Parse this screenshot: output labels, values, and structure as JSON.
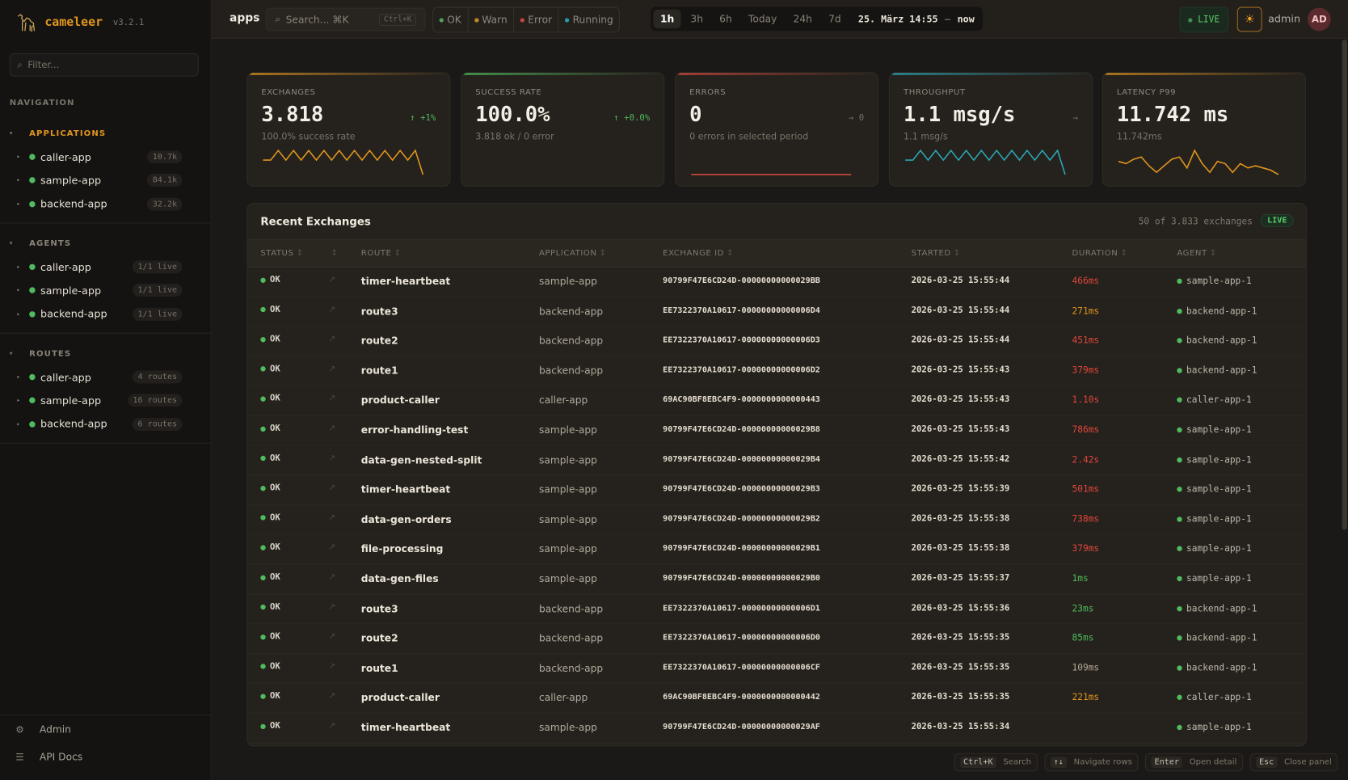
{
  "app": {
    "name": "cameleer",
    "version": "v3.2.1"
  },
  "sidebar": {
    "filter_placeholder": "Filter...",
    "nav_label": "NAVIGATION",
    "sections": [
      {
        "title": "APPLICATIONS",
        "active": true,
        "items": [
          {
            "label": "caller-app",
            "badge": "10.7k"
          },
          {
            "label": "sample-app",
            "badge": "84.1k"
          },
          {
            "label": "backend-app",
            "badge": "32.2k"
          }
        ]
      },
      {
        "title": "AGENTS",
        "active": false,
        "items": [
          {
            "label": "caller-app",
            "badge": "1/1 live"
          },
          {
            "label": "sample-app",
            "badge": "1/1 live"
          },
          {
            "label": "backend-app",
            "badge": "1/1 live"
          }
        ]
      },
      {
        "title": "ROUTES",
        "active": false,
        "items": [
          {
            "label": "caller-app",
            "badge": "4 routes"
          },
          {
            "label": "sample-app",
            "badge": "16 routes"
          },
          {
            "label": "backend-app",
            "badge": "6 routes"
          }
        ]
      }
    ],
    "footer": [
      {
        "label": "Admin",
        "icon": "gear-icon"
      },
      {
        "label": "API Docs",
        "icon": "docs-icon"
      }
    ]
  },
  "topbar": {
    "breadcrumb": "apps",
    "search_placeholder": "Search... ⌘K",
    "search_shortcut": "Ctrl+K",
    "status_filters": [
      {
        "label": "OK",
        "color": "#4fa05a"
      },
      {
        "label": "Warn",
        "color": "#c08a2a"
      },
      {
        "label": "Error",
        "color": "#c2473f"
      },
      {
        "label": "Running",
        "color": "#2a9aa8"
      }
    ],
    "time_ranges": [
      "1h",
      "3h",
      "6h",
      "Today",
      "24h",
      "7d"
    ],
    "active_range": "1h",
    "range_start": "25. März 14:55",
    "range_sep": "—",
    "range_end": "now",
    "live": "LIVE",
    "user": "admin",
    "avatar": "AD"
  },
  "kpis": [
    {
      "label": "EXCHANGES",
      "value": "3.818",
      "trend": "↑ +1%",
      "trend_color": "#4fbb5e",
      "sub": "100.0% success rate",
      "color": "#e0951f",
      "spark": [
        3,
        3,
        9,
        3,
        9,
        3,
        9,
        3,
        9,
        3,
        9,
        3,
        9,
        3,
        9,
        3,
        9,
        3,
        9,
        3,
        9,
        -6
      ]
    },
    {
      "label": "SUCCESS RATE",
      "value": "100.0%",
      "trend": "↑ +0.0%",
      "trend_color": "#4fbb5e",
      "sub": "3.818 ok / 0 error",
      "color": "#4fbb5e",
      "spark": []
    },
    {
      "label": "ERRORS",
      "value": "0",
      "trend": "→ 0",
      "trend_color": "#77716a",
      "sub": "0 errors in selected period",
      "color": "#d6493f",
      "spark": [
        0,
        0
      ]
    },
    {
      "label": "THROUGHPUT",
      "value": "1.1 msg/s",
      "trend": "→",
      "trend_color": "#77716a",
      "sub": "1.1 msg/s",
      "color": "#2aa6b8",
      "spark": [
        3,
        3,
        9,
        3,
        9,
        3,
        9,
        3,
        9,
        3,
        9,
        3,
        9,
        3,
        9,
        3,
        9,
        3,
        9,
        3,
        9,
        -6
      ]
    },
    {
      "label": "LATENCY P99",
      "value": "11.742 ms",
      "trend": "",
      "trend_color": "#77716a",
      "sub": "11.742ms",
      "color": "#e0951f",
      "spark": [
        5,
        4,
        6,
        7,
        3,
        0,
        3,
        6,
        7,
        2,
        10,
        4,
        0,
        5,
        4,
        0,
        4,
        2,
        3,
        2,
        1,
        -1
      ]
    }
  ],
  "table": {
    "title": "Recent Exchanges",
    "count": "50 of 3.833 exchanges",
    "live": "LIVE",
    "columns": [
      "STATUS",
      "",
      "ROUTE",
      "APPLICATION",
      "EXCHANGE ID",
      "STARTED",
      "DURATION",
      "AGENT"
    ],
    "rows": [
      {
        "status": "OK",
        "route": "timer-heartbeat",
        "app": "sample-app",
        "id": "90799F47E6CD24D-00000000000029BB",
        "started": "2026-03-25 15:55:44",
        "duration": "466ms",
        "dcolor": "#e0473d",
        "agent": "sample-app-1"
      },
      {
        "status": "OK",
        "route": "route3",
        "app": "backend-app",
        "id": "EE7322370A10617-00000000000006D4",
        "started": "2026-03-25 15:55:44",
        "duration": "271ms",
        "dcolor": "#e0951f",
        "agent": "backend-app-1"
      },
      {
        "status": "OK",
        "route": "route2",
        "app": "backend-app",
        "id": "EE7322370A10617-00000000000006D3",
        "started": "2026-03-25 15:55:44",
        "duration": "451ms",
        "dcolor": "#e0473d",
        "agent": "backend-app-1"
      },
      {
        "status": "OK",
        "route": "route1",
        "app": "backend-app",
        "id": "EE7322370A10617-00000000000006D2",
        "started": "2026-03-25 15:55:43",
        "duration": "379ms",
        "dcolor": "#e0473d",
        "agent": "backend-app-1"
      },
      {
        "status": "OK",
        "route": "product-caller",
        "app": "caller-app",
        "id": "69AC90BF8EBC4F9-0000000000000443",
        "started": "2026-03-25 15:55:43",
        "duration": "1.10s",
        "dcolor": "#e0473d",
        "agent": "caller-app-1"
      },
      {
        "status": "OK",
        "route": "error-handling-test",
        "app": "sample-app",
        "id": "90799F47E6CD24D-00000000000029B8",
        "started": "2026-03-25 15:55:43",
        "duration": "786ms",
        "dcolor": "#e0473d",
        "agent": "sample-app-1"
      },
      {
        "status": "OK",
        "route": "data-gen-nested-split",
        "app": "sample-app",
        "id": "90799F47E6CD24D-00000000000029B4",
        "started": "2026-03-25 15:55:42",
        "duration": "2.42s",
        "dcolor": "#e0473d",
        "agent": "sample-app-1"
      },
      {
        "status": "OK",
        "route": "timer-heartbeat",
        "app": "sample-app",
        "id": "90799F47E6CD24D-00000000000029B3",
        "started": "2026-03-25 15:55:39",
        "duration": "501ms",
        "dcolor": "#e0473d",
        "agent": "sample-app-1"
      },
      {
        "status": "OK",
        "route": "data-gen-orders",
        "app": "sample-app",
        "id": "90799F47E6CD24D-00000000000029B2",
        "started": "2026-03-25 15:55:38",
        "duration": "738ms",
        "dcolor": "#e0473d",
        "agent": "sample-app-1"
      },
      {
        "status": "OK",
        "route": "file-processing",
        "app": "sample-app",
        "id": "90799F47E6CD24D-00000000000029B1",
        "started": "2026-03-25 15:55:38",
        "duration": "379ms",
        "dcolor": "#e0473d",
        "agent": "sample-app-1"
      },
      {
        "status": "OK",
        "route": "data-gen-files",
        "app": "sample-app",
        "id": "90799F47E6CD24D-00000000000029B0",
        "started": "2026-03-25 15:55:37",
        "duration": "1ms",
        "dcolor": "#4fbb5e",
        "agent": "sample-app-1"
      },
      {
        "status": "OK",
        "route": "route3",
        "app": "backend-app",
        "id": "EE7322370A10617-00000000000006D1",
        "started": "2026-03-25 15:55:36",
        "duration": "23ms",
        "dcolor": "#4fbb5e",
        "agent": "backend-app-1"
      },
      {
        "status": "OK",
        "route": "route2",
        "app": "backend-app",
        "id": "EE7322370A10617-00000000000006D0",
        "started": "2026-03-25 15:55:35",
        "duration": "85ms",
        "dcolor": "#4fbb5e",
        "agent": "backend-app-1"
      },
      {
        "status": "OK",
        "route": "route1",
        "app": "backend-app",
        "id": "EE7322370A10617-00000000000006CF",
        "started": "2026-03-25 15:55:35",
        "duration": "109ms",
        "dcolor": "#b5ab98",
        "agent": "backend-app-1"
      },
      {
        "status": "OK",
        "route": "product-caller",
        "app": "caller-app",
        "id": "69AC90BF8EBC4F9-0000000000000442",
        "started": "2026-03-25 15:55:35",
        "duration": "221ms",
        "dcolor": "#e0951f",
        "agent": "caller-app-1"
      },
      {
        "status": "OK",
        "route": "timer-heartbeat",
        "app": "sample-app",
        "id": "90799F47E6CD24D-00000000000029AF",
        "started": "2026-03-25 15:55:34",
        "duration": "",
        "dcolor": "#e0951f",
        "agent": "sample-app-1"
      }
    ]
  },
  "hints": [
    {
      "key": "Ctrl+K",
      "label": "Search"
    },
    {
      "key": "↑↓",
      "label": "Navigate rows"
    },
    {
      "key": "Enter",
      "label": "Open detail"
    },
    {
      "key": "Esc",
      "label": "Close panel"
    }
  ]
}
